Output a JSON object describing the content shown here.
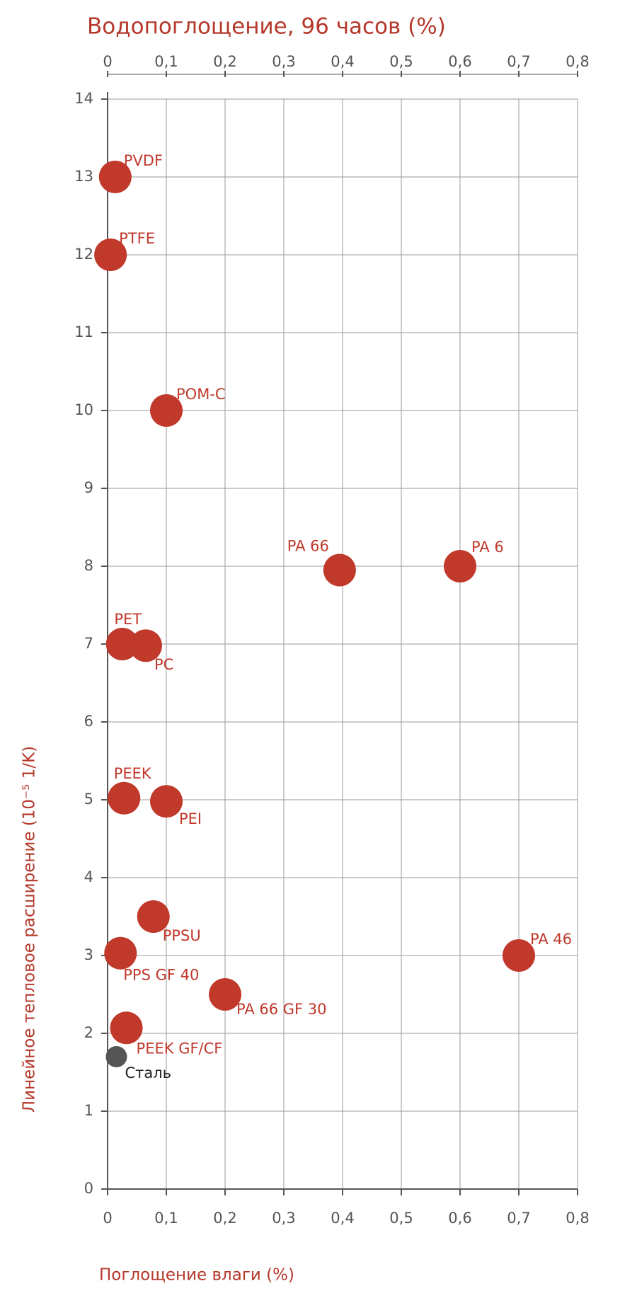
{
  "chart_data": {
    "type": "scatter",
    "title": "Водопоглощение, 96 часов (%)",
    "x_label": "Поглощение влаги (%)",
    "y_label": "Линейное тепловое расширение (10⁻⁵ 1/K)",
    "xlim": [
      0,
      0.8
    ],
    "ylim": [
      0,
      14
    ],
    "xticks": [
      0,
      {
        "value": 0.1,
        "label": "0,1"
      },
      {
        "value": 0.2,
        "label": "0,2"
      },
      {
        "value": 0.3,
        "label": "0,3"
      },
      {
        "value": 0.4,
        "label": "0,4"
      },
      {
        "value": 0.5,
        "label": "0,5"
      },
      {
        "value": 0.6,
        "label": "0,6"
      },
      {
        "value": 0.7,
        "label": "0,7"
      },
      {
        "value": 0.8,
        "label": "0,8"
      }
    ],
    "yticks": [
      0,
      1,
      2,
      3,
      4,
      5,
      6,
      7,
      8,
      9,
      10,
      11,
      12,
      13,
      14
    ],
    "grid": true,
    "points": [
      {
        "label": "PVDF",
        "x": 0.013,
        "y": 13,
        "color": "#c0392b"
      },
      {
        "label": "PTFE",
        "x": 0.005,
        "y": 12,
        "color": "#c0392b"
      },
      {
        "label": "POM-C",
        "x": 0.1,
        "y": 10,
        "color": "#c0392b"
      },
      {
        "label": "PA 66",
        "x": 0.395,
        "y": 7.95,
        "color": "#c0392b"
      },
      {
        "label": "PA 6",
        "x": 0.6,
        "y": 8,
        "color": "#c0392b"
      },
      {
        "label": "PET",
        "x": 0.025,
        "y": 7,
        "color": "#c0392b"
      },
      {
        "label": "PC",
        "x": 0.065,
        "y": 6.98,
        "color": "#c0392b"
      },
      {
        "label": "PEEK",
        "x": 0.028,
        "y": 5.02,
        "color": "#c0392b"
      },
      {
        "label": "PEI",
        "x": 0.1,
        "y": 4.98,
        "color": "#c0392b"
      },
      {
        "label": "PPSU",
        "x": 0.078,
        "y": 3.5,
        "color": "#c0392b"
      },
      {
        "label": "PPS GF 40",
        "x": 0.022,
        "y": 3.03,
        "color": "#c0392b"
      },
      {
        "label": "PA 46",
        "x": 0.7,
        "y": 3,
        "color": "#c0392b"
      },
      {
        "label": "PA 66 GF 30",
        "x": 0.2,
        "y": 2.5,
        "color": "#c0392b"
      },
      {
        "label": "PEEK GF/CF",
        "x": 0.032,
        "y": 2.07,
        "color": "#c0392b"
      },
      {
        "label": "Сталь",
        "x": 0.015,
        "y": 1.7,
        "color": "#555555"
      }
    ]
  }
}
